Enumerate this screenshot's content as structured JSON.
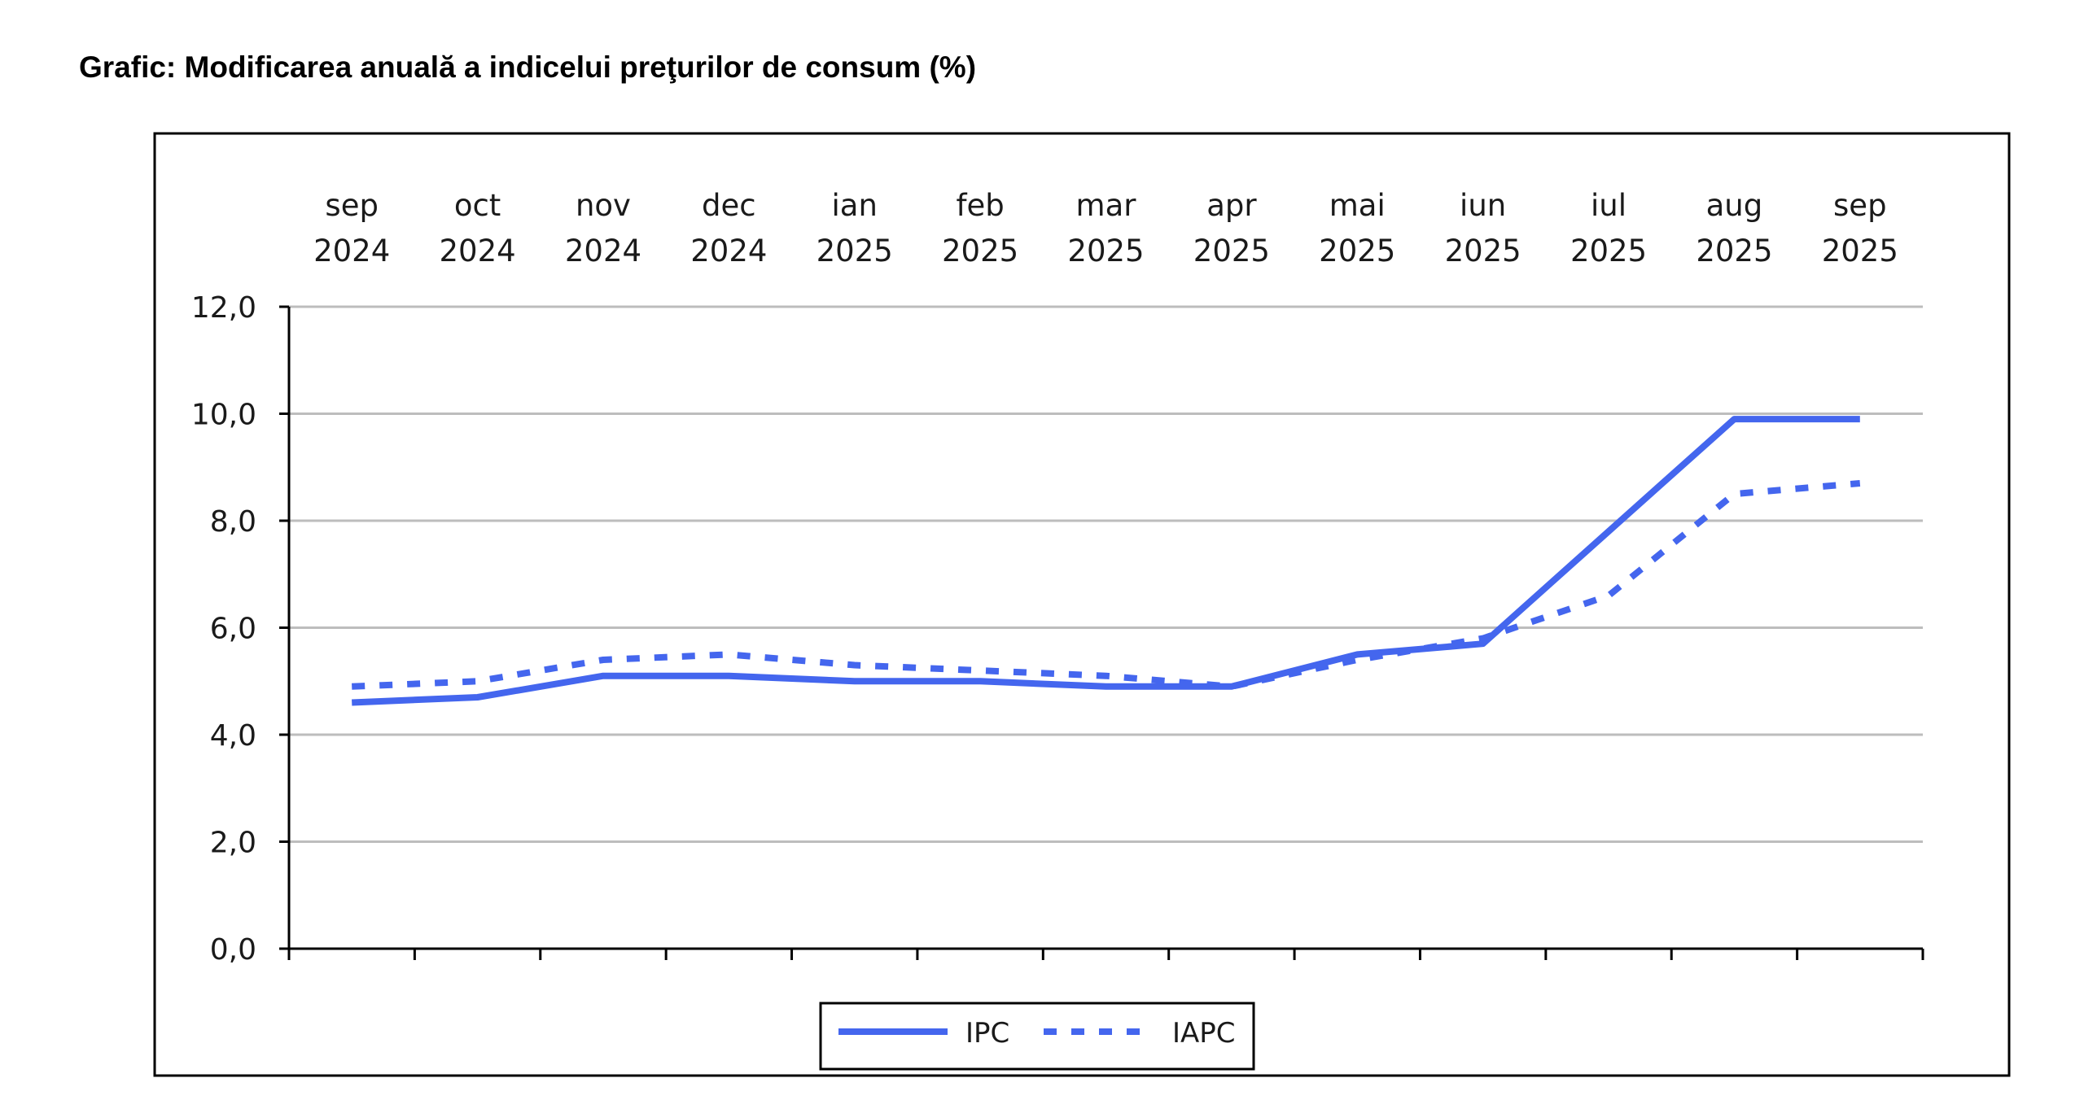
{
  "chart_data": {
    "type": "line",
    "title": "Grafic: Modificarea anuală a indicelui preţurilor de consum (%)",
    "categories": [
      [
        "sep",
        "2024"
      ],
      [
        "oct",
        "2024"
      ],
      [
        "nov",
        "2024"
      ],
      [
        "dec",
        "2024"
      ],
      [
        "ian",
        "2025"
      ],
      [
        "feb",
        "2025"
      ],
      [
        "mar",
        "2025"
      ],
      [
        "apr",
        "2025"
      ],
      [
        "mai",
        "2025"
      ],
      [
        "iun",
        "2025"
      ],
      [
        "iul",
        "2025"
      ],
      [
        "aug",
        "2025"
      ],
      [
        "sep",
        "2025"
      ]
    ],
    "series": [
      {
        "name": "IPC",
        "style": "solid",
        "color": "#4466EE",
        "values": [
          4.6,
          4.7,
          5.1,
          5.1,
          5.0,
          5.0,
          4.9,
          4.9,
          5.5,
          5.7,
          7.8,
          9.9,
          9.9
        ]
      },
      {
        "name": "IAPC",
        "style": "dotted",
        "color": "#4466EE",
        "values": [
          4.9,
          5.0,
          5.4,
          5.5,
          5.3,
          5.2,
          5.1,
          4.9,
          5.4,
          5.8,
          6.6,
          8.5,
          8.7
        ]
      }
    ],
    "ylim": [
      0,
      12
    ],
    "yticks": [
      "0,0",
      "2,0",
      "4,0",
      "6,0",
      "8,0",
      "10,0",
      "12,0"
    ],
    "ytick_values": [
      0,
      2,
      4,
      6,
      8,
      10,
      12
    ],
    "grid": true,
    "category_labels_position": "top",
    "legend_position": "bottom-center"
  }
}
